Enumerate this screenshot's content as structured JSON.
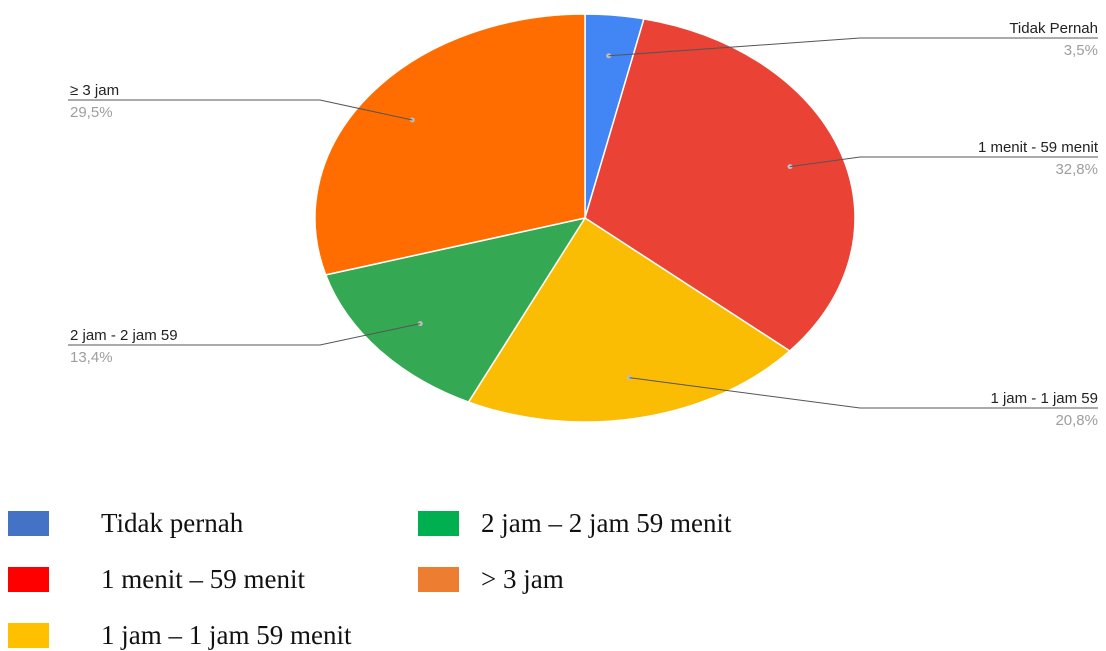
{
  "chart_data": {
    "type": "pie",
    "slices": [
      {
        "label": "Tidak Pernah",
        "value": 3.5,
        "value_label": "3,5%",
        "color": "#4285f4"
      },
      {
        "label": "1 menit - 59 menit",
        "value": 32.8,
        "value_label": "32,8%",
        "color": "#ea4335"
      },
      {
        "label": "1 jam - 1 jam 59",
        "value": 20.8,
        "value_label": "20,8%",
        "color": "#fbbc04"
      },
      {
        "label": "2 jam - 2 jam 59",
        "value": 13.4,
        "value_label": "13,4%",
        "color": "#34a853"
      },
      {
        "label": "≥ 3 jam",
        "value": 29.5,
        "value_label": "29,5%",
        "color": "#ff6d01"
      }
    ],
    "legend": [
      {
        "label": "Tidak pernah",
        "color": "#4472c4"
      },
      {
        "label": "1 menit – 59 menit",
        "color": "#ff0000"
      },
      {
        "label": "1 jam – 1 jam 59 menit",
        "color": "#ffc000"
      },
      {
        "label": "2 jam – 2 jam 59 menit",
        "color": "#00b050"
      },
      {
        "label": "> 3 jam",
        "color": "#ed7d31"
      }
    ]
  }
}
